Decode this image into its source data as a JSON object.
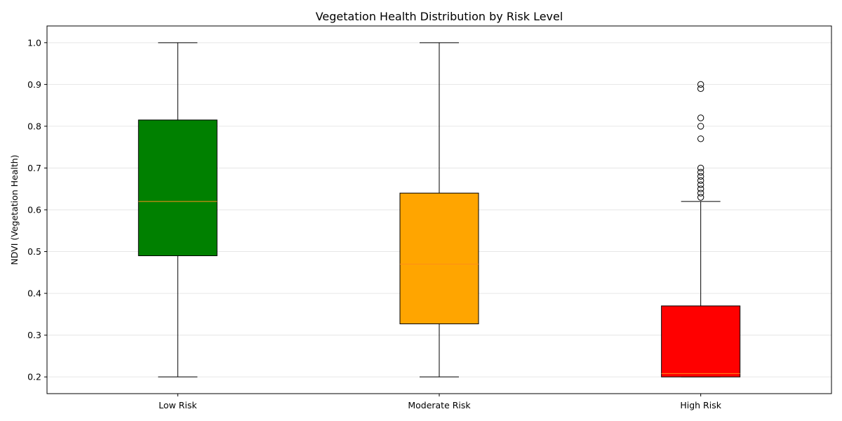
{
  "chart_data": {
    "type": "box",
    "title": "Vegetation Health Distribution by Risk Level",
    "xlabel": "",
    "ylabel": "NDVI (Vegetation Health)",
    "ylim": [
      0.16,
      1.04
    ],
    "yticks": [
      "0.2",
      "0.3",
      "0.4",
      "0.5",
      "0.6",
      "0.7",
      "0.8",
      "0.9",
      "1.0"
    ],
    "grid": "y",
    "categories": [
      "Low Risk",
      "Moderate Risk",
      "High Risk"
    ],
    "boxes": [
      {
        "category": "Low Risk",
        "whisker_low": 0.2,
        "q1": 0.49,
        "median": 0.62,
        "q3": 0.815,
        "whisker_high": 1.0,
        "fill": "#008000",
        "outliers": []
      },
      {
        "category": "Moderate Risk",
        "whisker_low": 0.2,
        "q1": 0.327,
        "median": 0.47,
        "q3": 0.64,
        "whisker_high": 1.0,
        "fill": "#ffa500",
        "outliers": []
      },
      {
        "category": "High Risk",
        "whisker_low": 0.2,
        "q1": 0.2,
        "median": 0.208,
        "q3": 0.37,
        "whisker_high": 0.62,
        "fill": "#ff0000",
        "outliers": [
          0.63,
          0.64,
          0.65,
          0.66,
          0.67,
          0.68,
          0.69,
          0.7,
          0.77,
          0.8,
          0.82,
          0.89,
          0.9
        ]
      }
    ],
    "colors": {
      "median": "#ff8c1a",
      "edge": "#000000",
      "grid": "#e6e6e6"
    }
  }
}
